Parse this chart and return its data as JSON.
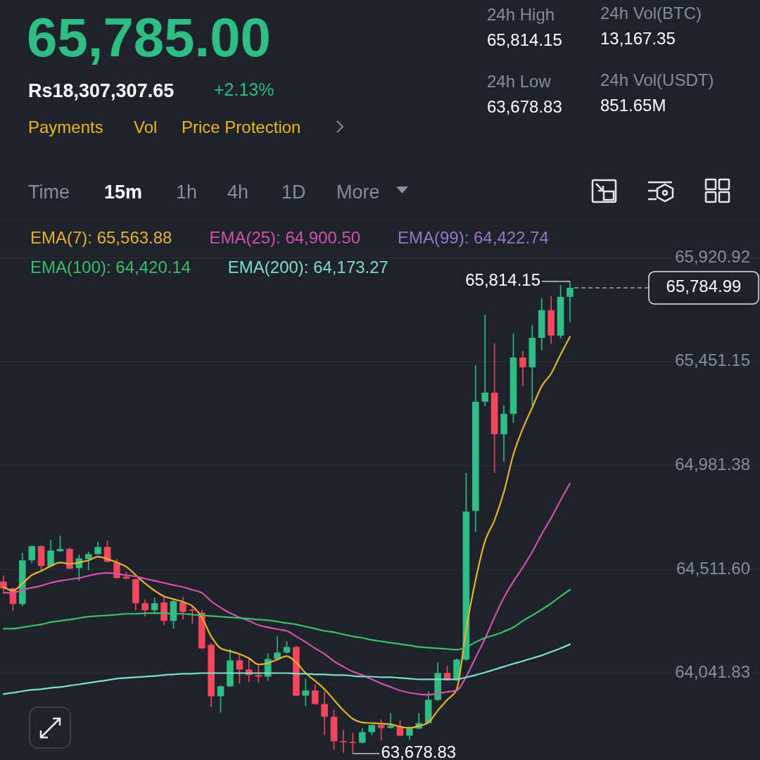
{
  "chart_data": {
    "type": "candlestick",
    "title": "65,785.00",
    "categories": [
      null,
      null,
      null,
      null,
      null,
      null,
      null,
      null,
      null,
      null,
      null,
      null,
      null,
      null,
      null,
      null,
      null,
      null,
      null,
      null,
      null,
      null,
      null,
      null,
      null,
      null,
      null,
      null,
      null,
      null,
      null,
      null,
      null,
      null,
      null,
      null,
      null,
      null,
      null,
      null,
      null,
      null,
      null,
      null,
      null,
      null,
      null,
      null,
      null,
      null,
      null,
      null,
      null,
      null,
      null,
      null,
      null,
      null,
      null,
      null,
      null
    ],
    "ohlc": [
      [
        64457,
        64483,
        64410,
        64426
      ],
      [
        64426,
        64430,
        64324,
        64355
      ],
      [
        64355,
        64588,
        64345,
        64553
      ],
      [
        64553,
        64620,
        64540,
        64617
      ],
      [
        64617,
        64620,
        64506,
        64527
      ],
      [
        64527,
        64645,
        64524,
        64597
      ],
      [
        64594,
        64664,
        64591,
        64604
      ],
      [
        64604,
        64610,
        64512,
        64515
      ],
      [
        64518,
        64578,
        64460,
        64562
      ],
      [
        64559,
        64591,
        64508,
        64581
      ],
      [
        64581,
        64636,
        64578,
        64613
      ],
      [
        64613,
        64642,
        64543,
        64546
      ],
      [
        64543,
        64559,
        64470,
        64473
      ],
      [
        64479,
        64502,
        64467,
        64470
      ],
      [
        64467,
        64470,
        64327,
        64359
      ],
      [
        64359,
        64375,
        64298,
        64327
      ],
      [
        64327,
        64384,
        64314,
        64359
      ],
      [
        64362,
        64394,
        64260,
        64279
      ],
      [
        64279,
        64378,
        64244,
        64368
      ],
      [
        64362,
        64387,
        64285,
        64320
      ],
      [
        64330,
        64346,
        64266,
        64326
      ],
      [
        64317,
        64330,
        64152,
        64155
      ],
      [
        64171,
        64180,
        63890,
        63938
      ],
      [
        63938,
        63987,
        63865,
        63983
      ],
      [
        63983,
        64152,
        63980,
        64101
      ],
      [
        64101,
        64129,
        63995,
        64059
      ],
      [
        64059,
        64113,
        64002,
        64034
      ],
      [
        64034,
        64078,
        63999,
        64027
      ],
      [
        64027,
        64132,
        64008,
        64107
      ],
      [
        64107,
        64209,
        64104,
        64136
      ],
      [
        64136,
        64187,
        64132,
        64161
      ],
      [
        64161,
        64167,
        63938,
        63941
      ],
      [
        63941,
        64018,
        63894,
        63964
      ],
      [
        63964,
        63992,
        63900,
        63903
      ],
      [
        63903,
        63960,
        63763,
        63846
      ],
      [
        63846,
        63878,
        63697,
        63735
      ],
      [
        63735,
        63785,
        63683,
        63732
      ],
      [
        63732,
        63773,
        63678.83,
        63728
      ],
      [
        63728,
        63795,
        63725,
        63776
      ],
      [
        63776,
        63811,
        63763,
        63808
      ],
      [
        63808,
        63833,
        63738,
        63795
      ],
      [
        63795,
        63862,
        63792,
        63805
      ],
      [
        63799,
        63830,
        63757,
        63760
      ],
      [
        63760,
        63801,
        63741,
        63792
      ],
      [
        63792,
        63862,
        63789,
        63817
      ],
      [
        63817,
        63960,
        63814,
        63922
      ],
      [
        63922,
        64091,
        63917,
        64043
      ],
      [
        64043,
        64075,
        64008,
        64011
      ],
      [
        64011,
        64108,
        64008,
        64104
      ],
      [
        64104,
        64948,
        64098,
        64773
      ],
      [
        64776,
        65435,
        64680,
        65270
      ],
      [
        65270,
        65664,
        65250,
        65311
      ],
      [
        65311,
        65534,
        64948,
        65123
      ],
      [
        65123,
        65254,
        64999,
        65215
      ],
      [
        65215,
        65578,
        65174,
        65470
      ],
      [
        65470,
        65499,
        65340,
        65426
      ],
      [
        65426,
        65617,
        65254,
        65559
      ],
      [
        65559,
        65738,
        65502,
        65684
      ],
      [
        65684,
        65747,
        65531,
        65569
      ],
      [
        65569,
        65798,
        65556,
        65744
      ],
      [
        65744,
        65814.15,
        65630,
        65784.99
      ]
    ],
    "series": [
      {
        "name": "EMA(7): 65,563.88",
        "type": "line",
        "color": "#e9b22c",
        "values": [
          64432,
          64416,
          64448,
          64486,
          64505,
          64527,
          64543,
          64537,
          64543,
          64553,
          64569,
          64559,
          64543,
          64524,
          64486,
          64448,
          64416,
          64390,
          64378,
          64365,
          64346,
          64295,
          64209,
          64155,
          64142,
          64129,
          64110,
          64082,
          64088,
          64104,
          64120,
          64091,
          64043,
          64008,
          63970,
          63922,
          63874,
          63836,
          63820,
          63817,
          63814,
          63811,
          63801,
          63795,
          63804,
          63820,
          63874,
          63922,
          63970,
          64241,
          64464,
          64639,
          64734,
          64862,
          65031,
          65148,
          65244,
          65340,
          65397,
          65483,
          65564
        ]
      },
      {
        "name": "EMA(25): 64,900.50",
        "type": "line",
        "color": "#d64fae",
        "values": [
          64406,
          64406,
          64419,
          64429,
          64438,
          64451,
          64460,
          64467,
          64473,
          64483,
          64492,
          64496,
          64492,
          64486,
          64480,
          64470,
          64460,
          64451,
          64441,
          64432,
          64419,
          64406,
          64368,
          64339,
          64314,
          64295,
          64279,
          64260,
          64250,
          64241,
          64234,
          64209,
          64183,
          64155,
          64129,
          64097,
          64072,
          64050,
          64034,
          64015,
          63996,
          63980,
          63964,
          63954,
          63948,
          63945,
          63951,
          63958,
          63964,
          64027,
          64113,
          64199,
          64295,
          64384,
          64457,
          64521,
          64591,
          64671,
          64744,
          64824,
          64901
        ]
      },
      {
        "name": "EMA(99): 64,422.74",
        "type": "line",
        "color": "#9a75c8",
        "values": [
          null,
          null,
          null,
          null,
          null,
          null,
          null,
          null,
          null,
          null,
          null,
          null,
          null,
          null,
          null,
          null,
          null,
          null,
          null,
          null,
          null,
          null,
          null,
          null,
          null,
          null,
          null,
          null,
          null,
          null,
          null,
          null,
          null,
          null,
          null,
          null,
          null,
          null,
          null,
          null,
          null,
          null,
          null,
          null,
          null,
          null,
          null,
          null,
          null,
          null,
          null,
          null,
          null,
          null,
          null,
          null,
          null,
          null,
          null,
          null,
          null
        ]
      },
      {
        "name": "EMA(100): 64,420.14",
        "type": "line",
        "color": "#3dbd6c",
        "values": [
          64244,
          64244,
          64250,
          64257,
          64263,
          64273,
          64279,
          64285,
          64292,
          64298,
          64301,
          64304,
          64307,
          64311,
          64311,
          64314,
          64314,
          64314,
          64311,
          64311,
          64307,
          64304,
          64301,
          64298,
          64295,
          64292,
          64289,
          64285,
          64282,
          64276,
          64269,
          64263,
          64253,
          64244,
          64234,
          64228,
          64218,
          64209,
          64202,
          64193,
          64187,
          64180,
          64174,
          64168,
          64161,
          64158,
          64155,
          64152,
          64149,
          64161,
          64183,
          64202,
          64215,
          64231,
          64250,
          64279,
          64304,
          64330,
          64358,
          64390,
          64420
        ]
      },
      {
        "name": "EMA(200): 64,173.27",
        "type": "line",
        "color": "#7fdccb",
        "values": [
          63948,
          63954,
          63961,
          63967,
          63970,
          63976,
          63980,
          63986,
          63992,
          63999,
          64005,
          64011,
          64018,
          64021,
          64024,
          64027,
          64030,
          64034,
          64037,
          64040,
          64040,
          64043,
          64043,
          64043,
          64043,
          64043,
          64043,
          64043,
          64043,
          64043,
          64043,
          64040,
          64040,
          64037,
          64037,
          64034,
          64034,
          64030,
          64027,
          64027,
          64024,
          64024,
          64021,
          64018,
          64015,
          64015,
          64015,
          64015,
          64015,
          64024,
          64034,
          64046,
          64059,
          64072,
          64085,
          64097,
          64110,
          64123,
          64139,
          64155,
          64173
        ]
      }
    ],
    "ylim": [
      63650,
      66100
    ],
    "yticks": [
      {
        "value": 65920.92,
        "label": "65,920.92"
      },
      {
        "value": 65451.15,
        "label": "65,451.15"
      },
      {
        "value": 64981.38,
        "label": "64,981.38"
      },
      {
        "value": 64511.6,
        "label": "64,511.60"
      },
      {
        "value": 64041.83,
        "label": "64,041.83"
      }
    ],
    "grid": "y",
    "legend": "top",
    "tick_labels": "y",
    "ref_lines": [
      {
        "axis": "y",
        "value": 65784.99,
        "label": "65,784.99",
        "line_style": "dashed",
        "color": "#e8e8e8"
      }
    ],
    "annotations": [
      "Rs18,307,307.65",
      "+2.13%",
      "Payments",
      "Vol",
      "Price Protection",
      "24h High",
      "65,814.15",
      "24h Vol(BTC)",
      "13,167.35",
      "24h Low",
      "63,678.83",
      "24h Vol(USDT)",
      "851.65M",
      "Time",
      "15m",
      "1h",
      "4h",
      "1D",
      "More",
      "65,814.15",
      "63,678.83"
    ]
  }
}
